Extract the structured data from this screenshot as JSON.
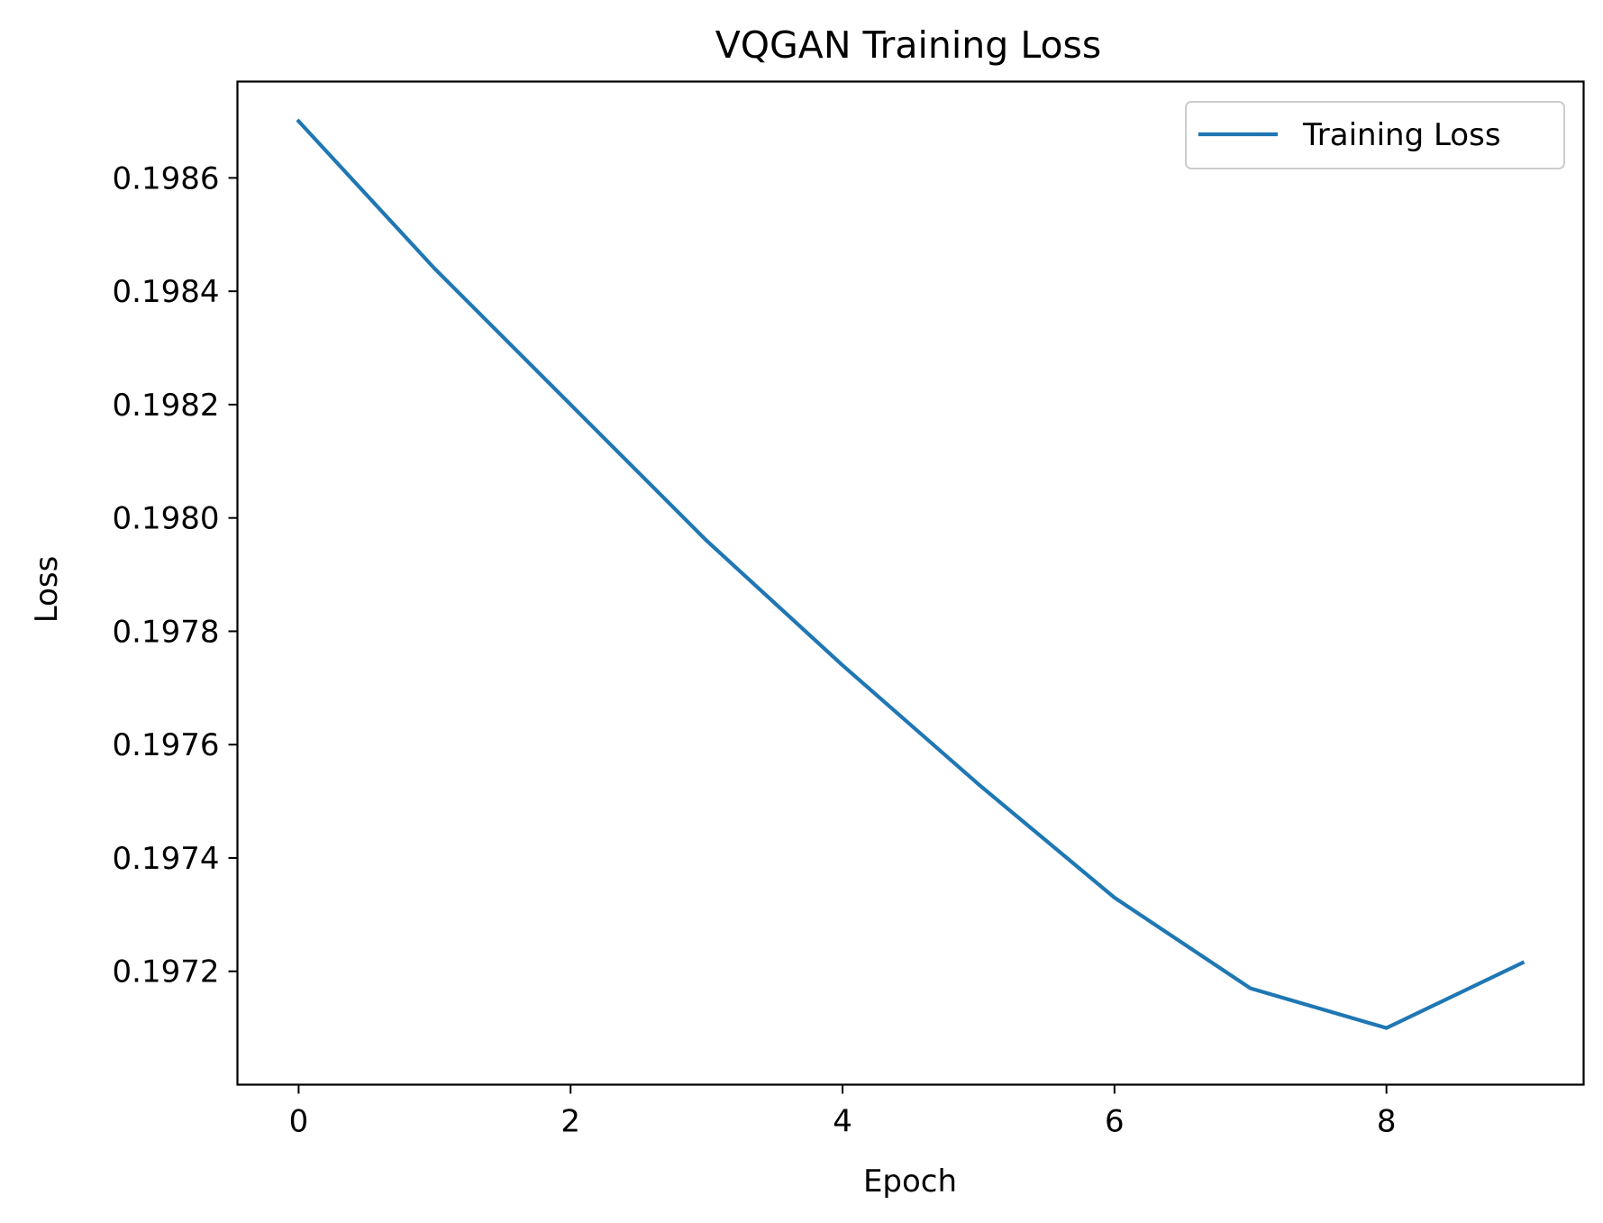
{
  "chart_data": {
    "type": "line",
    "title": "VQGAN Training Loss",
    "xlabel": "Epoch",
    "ylabel": "Loss",
    "x": [
      0,
      1,
      2,
      3,
      4,
      5,
      6,
      7,
      8,
      9
    ],
    "series": [
      {
        "name": "Training Loss",
        "color": "#1f77b4",
        "values": [
          0.1987,
          0.19844,
          0.1982,
          0.19796,
          0.19774,
          0.19753,
          0.19733,
          0.19717,
          0.1971,
          0.197215
        ]
      }
    ],
    "xlim": [
      -0.45,
      9.45
    ],
    "ylim": [
      0.197,
      0.19877
    ],
    "xticks": [
      0,
      2,
      4,
      6,
      8
    ],
    "xtick_labels": [
      "0",
      "2",
      "4",
      "6",
      "8"
    ],
    "yticks": [
      0.1972,
      0.1974,
      0.1976,
      0.1978,
      0.198,
      0.1982,
      0.1984,
      0.1986
    ],
    "ytick_labels": [
      "0.1972",
      "0.1974",
      "0.1976",
      "0.1978",
      "0.1980",
      "0.1982",
      "0.1984",
      "0.1986"
    ],
    "grid": false,
    "legend_position": "top-right"
  }
}
